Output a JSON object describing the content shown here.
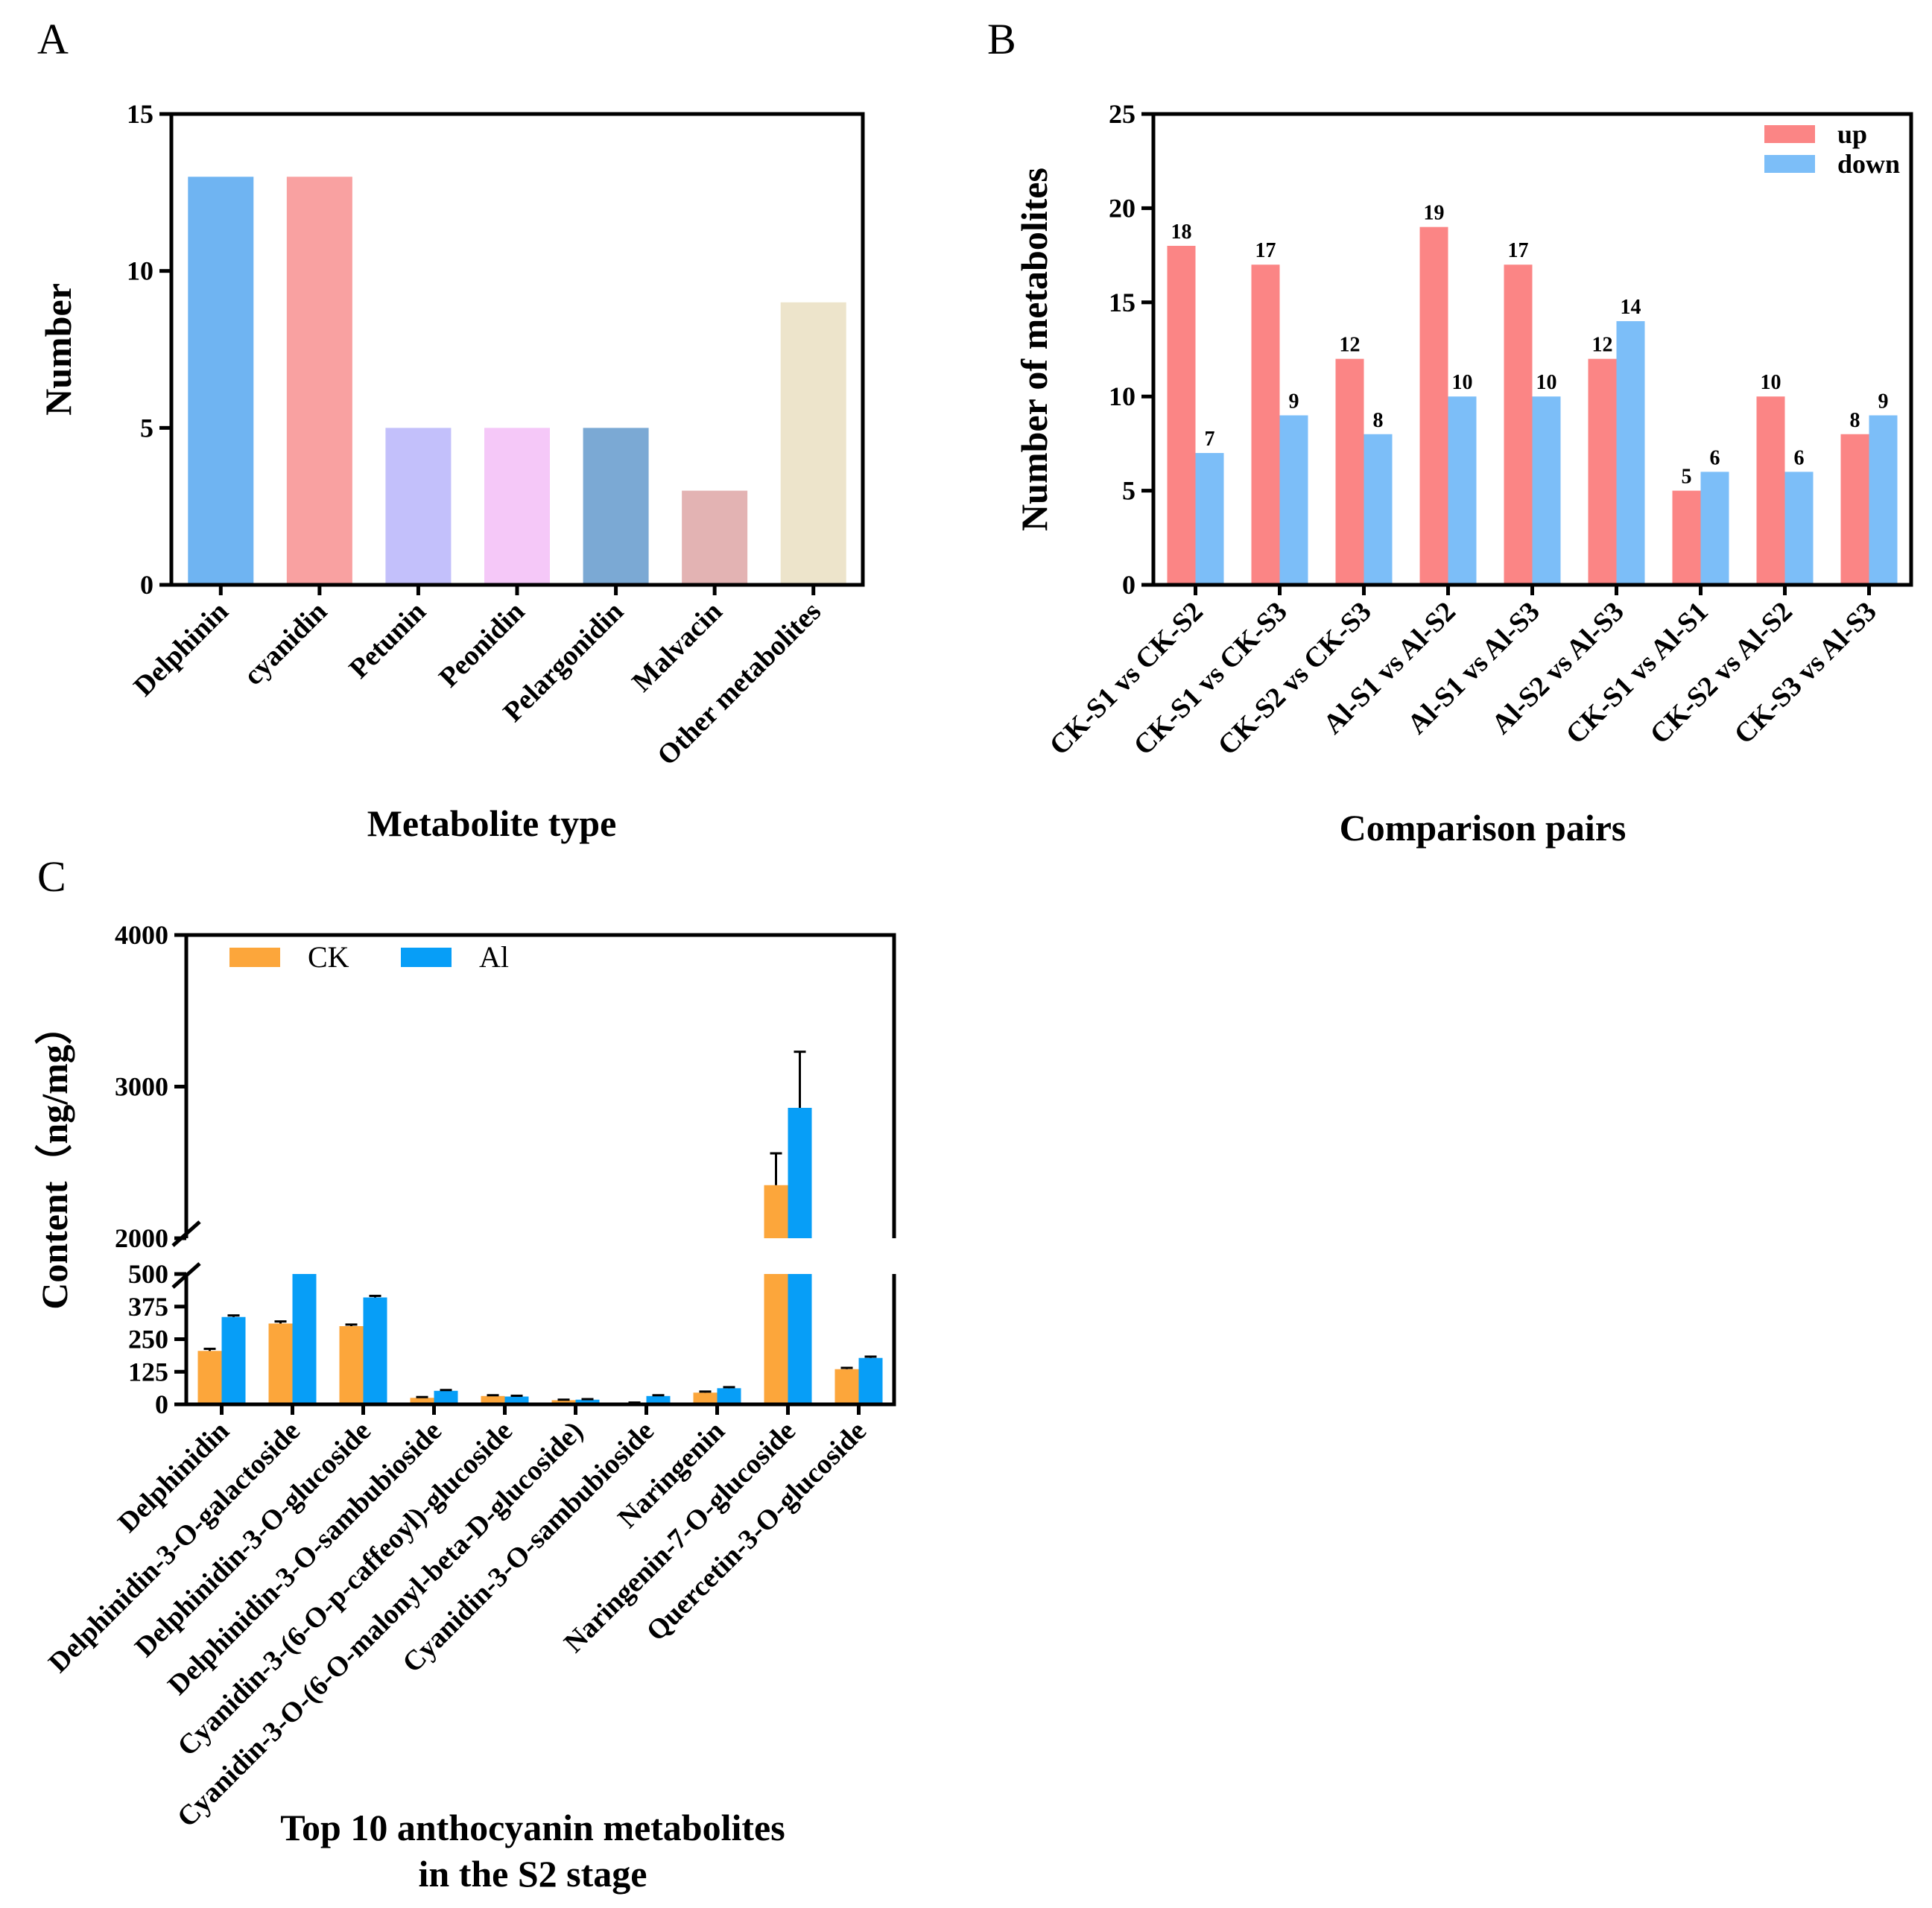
{
  "panels": {
    "A": {
      "letter": "A"
    },
    "B": {
      "letter": "B"
    },
    "C": {
      "letter": "C"
    }
  },
  "chart_data": [
    {
      "panel": "A",
      "type": "bar",
      "title": "",
      "xlabel": "Metabolite type",
      "ylabel": "Number",
      "ylim": [
        0,
        15
      ],
      "yticks": [
        0,
        5,
        10,
        15
      ],
      "categories": [
        "Delphinin",
        "cyanidin",
        "Petunin",
        "Peonidin",
        "Pelargonidin",
        "Malvacin",
        "Other metabolites"
      ],
      "values": [
        13,
        13,
        5,
        5,
        5,
        3,
        9
      ],
      "colors": [
        "#6fb4f2",
        "#f9a1a1",
        "#c3c0fb",
        "#f5c8f8",
        "#7ba9d4",
        "#e3b3b3",
        "#ede4cb"
      ]
    },
    {
      "panel": "B",
      "type": "bar",
      "title": "",
      "xlabel": "Comparison pairs",
      "ylabel": "Number of metabolites",
      "ylim": [
        0,
        25
      ],
      "yticks": [
        0,
        5,
        10,
        15,
        20,
        25
      ],
      "categories": [
        "CK-S1 vs CK-S2",
        "CK-S1 vs CK-S3",
        "CK-S2 vs CK-S3",
        "Al-S1 vs Al-S2",
        "Al-S1 vs Al-S3",
        "Al-S2 vs Al-S3",
        "CK-S1 vs Al-S1",
        "CK-S2 vs Al-S2",
        "CK-S3 vs Al-S3"
      ],
      "series": [
        {
          "name": "up",
          "color": "#fb8585",
          "values": [
            18,
            17,
            12,
            19,
            17,
            12,
            5,
            10,
            8
          ]
        },
        {
          "name": "down",
          "color": "#7cbef8",
          "values": [
            7,
            9,
            8,
            10,
            10,
            14,
            6,
            6,
            9
          ]
        }
      ],
      "legend_position": "top-right"
    },
    {
      "panel": "C",
      "type": "bar",
      "title": "",
      "xlabel": "Top 10 anthocyanin metabolites\nin the S2 stage",
      "xlabel_lines": [
        "Top 10 anthocyanin metabolites",
        "in the S2 stage"
      ],
      "ylabel": "Content（ng/mg）",
      "axis_break": [
        500,
        2000
      ],
      "lower_range": [
        0,
        500
      ],
      "upper_range": [
        2000,
        4000
      ],
      "yticks_lower": [
        0,
        125,
        250,
        375,
        500
      ],
      "yticks_upper": [
        2000,
        3000,
        4000
      ],
      "categories": [
        "Delphinidin",
        "Delphinidin-3-O-galactoside",
        "Delphinidin-3-O-glucoside",
        "Delphinidin-3-O-sambubioside",
        "Cyanidin-3-(6-O-p-caffeoyl)-glucoside",
        "Cyanidin-3-O-(6-O-malonyl-beta-D-glucoside)",
        "Cyanidin-3-O-sambubioside",
        "Naringenin",
        "Naringenin-7-O-glucoside",
        "Quercetin-3-O-glucoside"
      ],
      "series": [
        {
          "name": "CK",
          "color": "#fca63b",
          "values": [
            205,
            310,
            300,
            25,
            32,
            16,
            6,
            45,
            2350,
            135
          ],
          "errors": [
            8,
            8,
            6,
            3,
            3,
            2,
            1,
            4,
            210,
            5
          ]
        },
        {
          "name": "Al",
          "color": "#079ef7",
          "values": [
            335,
            500,
            410,
            52,
            30,
            18,
            32,
            62,
            2860,
            178
          ],
          "errors": [
            6,
            0,
            6,
            3,
            3,
            2,
            3,
            4,
            370,
            5
          ]
        }
      ],
      "legend_position": "top-left"
    }
  ]
}
